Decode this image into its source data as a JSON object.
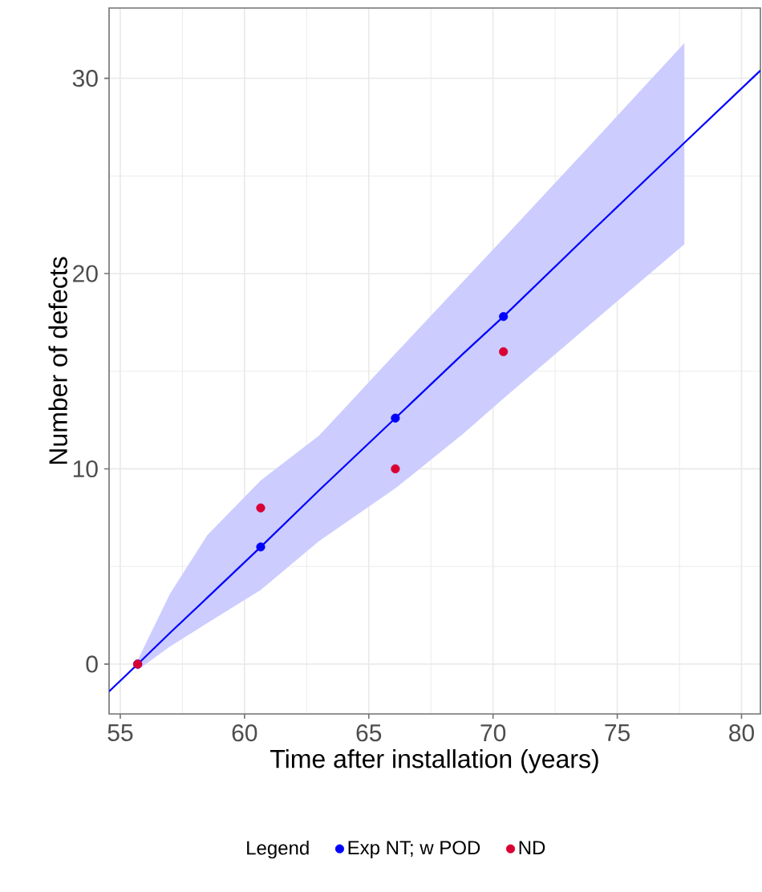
{
  "chart_data": {
    "type": "scatter",
    "xlabel": "Time after installation (years)",
    "ylabel": "Number of defects",
    "legend_title": "Legend",
    "series": [
      {
        "name": "Exp NT; w POD",
        "color": "#0000ff",
        "marker": "circle",
        "x": [
          55.7,
          60.65,
          66.07,
          70.42
        ],
        "values": [
          0,
          6,
          12.6,
          17.8
        ]
      },
      {
        "name": "ND",
        "color": "#d80034",
        "marker": "circle",
        "x": [
          55.7,
          60.65,
          66.07,
          70.42
        ],
        "values": [
          0,
          8,
          10,
          16
        ]
      },
      {
        "type": "line",
        "color": "#0000ff",
        "marker": "none",
        "x": [
          54.55,
          55.7,
          57,
          58.5,
          60.65,
          63,
          66.07,
          68.8,
          70.42,
          74,
          77.7,
          80.76
        ],
        "values": [
          -1.4,
          0,
          1.6,
          3.4,
          6,
          8.9,
          12.6,
          15.9,
          17.8,
          22.2,
          26.7,
          30.4
        ],
        "lower": [
          null,
          -0.3,
          0.9,
          2.1,
          3.8,
          6.3,
          9,
          11.8,
          13.6,
          17.5,
          21.5,
          null
        ],
        "upper": [
          null,
          0.2,
          3.6,
          6.6,
          9.4,
          11.7,
          15.9,
          19.6,
          21.8,
          26.7,
          31.8,
          null
        ]
      }
    ],
    "xlim": [
      54.55,
      80.76
    ],
    "ylim": [
      -2.55,
      33.6
    ],
    "xticks": [
      55,
      60,
      65,
      70,
      75,
      80
    ],
    "yticks": [
      0,
      10,
      20,
      30
    ],
    "grid": true,
    "legend": "bottom",
    "line_style": "solid"
  }
}
